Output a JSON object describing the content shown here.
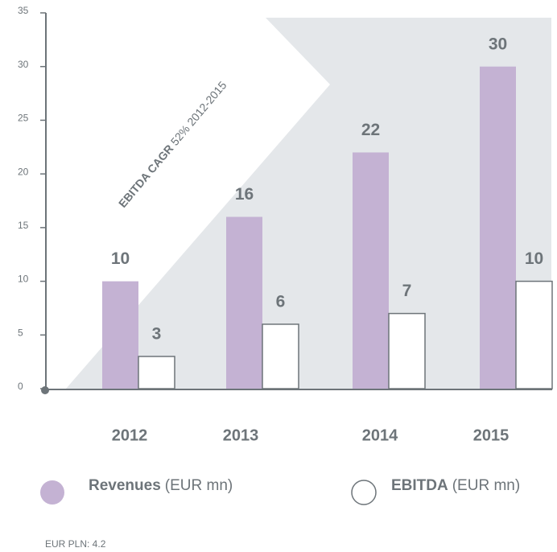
{
  "chart_data": {
    "type": "bar",
    "categories": [
      "2012",
      "2013",
      "2014",
      "2015"
    ],
    "series": [
      {
        "name": "Revenues",
        "color": "#c4b2d3",
        "values": [
          10,
          16,
          22,
          30
        ]
      },
      {
        "name": "EBITDA",
        "color": "#ffffff",
        "values": [
          3,
          6,
          7,
          10
        ]
      }
    ],
    "unit": "(EUR mn)",
    "ylim": [
      0,
      35
    ],
    "yticks": [
      0,
      5,
      10,
      15,
      20,
      25,
      30,
      35
    ],
    "annotation": {
      "bold": "EBITDA CAGR",
      "text": "52% 2012-2015"
    },
    "footnote": "EUR PLN: 4.2"
  }
}
